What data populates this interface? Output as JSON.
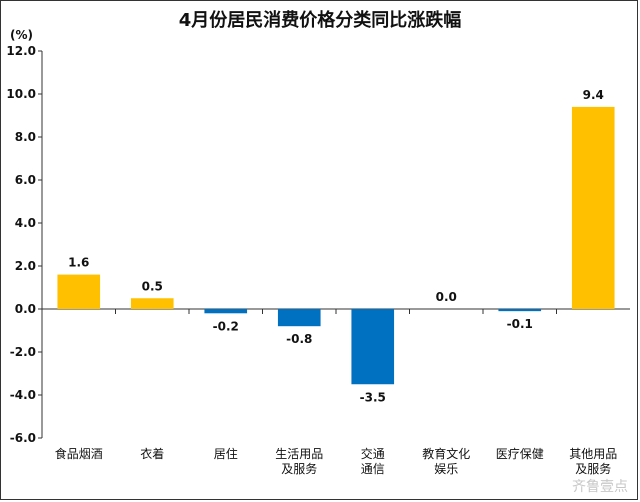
{
  "chart_data": {
    "type": "bar",
    "title": "4月份居民消费价格分类同比涨跌幅",
    "unit_label": "(%)",
    "categories": [
      "食品烟酒",
      "衣着",
      "居住",
      "生活用品\n及服务",
      "交通\n通信",
      "教育文化\n娱乐",
      "医疗保健",
      "其他用品\n及服务"
    ],
    "values": [
      1.6,
      0.5,
      -0.2,
      -0.8,
      -3.5,
      0.0,
      -0.1,
      9.4
    ],
    "value_labels": [
      "1.6",
      "0.5",
      "-0.2",
      "-0.8",
      "-3.5",
      "0.0",
      "-0.1",
      "9.4"
    ],
    "ylim": [
      -6.0,
      12.0
    ],
    "yticks": [
      "12.0",
      "10.0",
      "8.0",
      "6.0",
      "4.0",
      "2.0",
      "0.0",
      "-2.0",
      "-4.0",
      "-6.0"
    ],
    "ytick_values": [
      12,
      10,
      8,
      6,
      4,
      2,
      0,
      -2,
      -4,
      -6
    ],
    "colors": {
      "positive": "#FFC000",
      "negative": "#0070C0",
      "axis": "#333333"
    },
    "grid": false,
    "legend": "none"
  },
  "watermark": "齐鲁壹点"
}
